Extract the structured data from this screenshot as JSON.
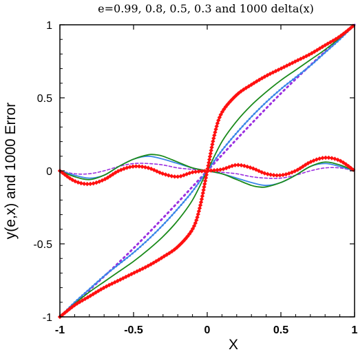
{
  "chart_data": {
    "type": "line",
    "title": "e=0.99, 0.8, 0.5, 0.3 and 1000 delta(x)",
    "xlabel": "X",
    "ylabel": "y(e,x) and 1000 Error",
    "xlim": [
      -1,
      1
    ],
    "ylim": [
      -1,
      1
    ],
    "xticks": [
      -1,
      -0.5,
      0,
      0.5,
      1
    ],
    "yticks": [
      -1,
      -0.5,
      0,
      0.5,
      1
    ],
    "xtick_labels": [
      "-1",
      "-0.5",
      "0",
      "0.5",
      "1"
    ],
    "ytick_labels": [
      "-1",
      "-0.5",
      "0",
      "0.5",
      "1"
    ],
    "grid": false,
    "series": [
      {
        "kind": "y(e,x)",
        "e": 0.99,
        "color": "#ff1010",
        "style": "solid-diamond-markers",
        "x": [
          -1,
          -0.9,
          -0.8,
          -0.7,
          -0.6,
          -0.5,
          -0.4,
          -0.3,
          -0.2,
          -0.1,
          -0.05,
          0,
          0.05,
          0.1,
          0.2,
          0.3,
          0.4,
          0.5,
          0.6,
          0.7,
          0.8,
          0.9,
          1
        ],
        "y": [
          -1,
          -0.92,
          -0.86,
          -0.8,
          -0.75,
          -0.7,
          -0.65,
          -0.59,
          -0.52,
          -0.4,
          -0.25,
          0,
          0.25,
          0.4,
          0.52,
          0.59,
          0.65,
          0.7,
          0.75,
          0.8,
          0.86,
          0.92,
          1
        ]
      },
      {
        "kind": "y(e,x)",
        "e": 0.8,
        "color": "#1a8a1a",
        "style": "solid",
        "x": [
          -1,
          -0.9,
          -0.8,
          -0.7,
          -0.6,
          -0.5,
          -0.4,
          -0.3,
          -0.2,
          -0.1,
          0,
          0.1,
          0.2,
          0.3,
          0.4,
          0.5,
          0.6,
          0.7,
          0.8,
          0.9,
          1
        ],
        "y": [
          -1,
          -0.91,
          -0.83,
          -0.76,
          -0.69,
          -0.62,
          -0.54,
          -0.45,
          -0.34,
          -0.2,
          0,
          0.2,
          0.34,
          0.45,
          0.54,
          0.62,
          0.69,
          0.76,
          0.83,
          0.91,
          1
        ]
      },
      {
        "kind": "y(e,x)",
        "e": 0.5,
        "color": "#3a86e8",
        "style": "solid-small-markers",
        "x": [
          -1,
          -0.9,
          -0.8,
          -0.7,
          -0.6,
          -0.5,
          -0.4,
          -0.3,
          -0.2,
          -0.1,
          0,
          0.1,
          0.2,
          0.3,
          0.4,
          0.5,
          0.6,
          0.7,
          0.8,
          0.9,
          1
        ],
        "y": [
          -1,
          -0.9,
          -0.81,
          -0.72,
          -0.64,
          -0.56,
          -0.47,
          -0.37,
          -0.26,
          -0.14,
          0,
          0.14,
          0.26,
          0.37,
          0.47,
          0.56,
          0.64,
          0.72,
          0.81,
          0.9,
          1
        ]
      },
      {
        "kind": "y(e,x)",
        "e": 0.3,
        "color": "#9b30e0",
        "style": "dashed-dots",
        "x": [
          -1,
          -0.75,
          -0.5,
          -0.25,
          0,
          0.25,
          0.5,
          0.75,
          1
        ],
        "y": [
          -1,
          -0.77,
          -0.53,
          -0.27,
          0,
          0.27,
          0.53,
          0.77,
          1
        ]
      },
      {
        "kind": "1000 Error",
        "e": 0.99,
        "color": "#ff1010",
        "style": "solid-diamond-markers",
        "x": [
          -1,
          -0.9,
          -0.8,
          -0.7,
          -0.6,
          -0.5,
          -0.4,
          -0.3,
          -0.2,
          -0.1,
          0,
          0.1,
          0.2,
          0.3,
          0.4,
          0.5,
          0.6,
          0.7,
          0.8,
          0.9,
          1
        ],
        "y": [
          0,
          -0.07,
          -0.09,
          -0.06,
          0,
          0.03,
          0.02,
          -0.02,
          -0.04,
          -0.01,
          0,
          0.01,
          0.04,
          0.02,
          -0.02,
          -0.03,
          0,
          0.06,
          0.09,
          0.07,
          0
        ]
      },
      {
        "kind": "1000 Error",
        "e": 0.8,
        "color": "#1a8a1a",
        "style": "solid",
        "x": [
          -1,
          -0.9,
          -0.8,
          -0.7,
          -0.6,
          -0.5,
          -0.4,
          -0.35,
          -0.3,
          -0.2,
          -0.1,
          0,
          0.1,
          0.2,
          0.3,
          0.35,
          0.4,
          0.5,
          0.6,
          0.7,
          0.8,
          0.9,
          1
        ],
        "y": [
          0,
          -0.04,
          -0.06,
          -0.03,
          0.03,
          0.08,
          0.11,
          0.11,
          0.1,
          0.06,
          0.02,
          0,
          -0.02,
          -0.06,
          -0.1,
          -0.11,
          -0.11,
          -0.08,
          -0.03,
          0.03,
          0.06,
          0.04,
          0
        ]
      },
      {
        "kind": "1000 Error",
        "e": 0.5,
        "color": "#3a86e8",
        "style": "solid",
        "x": [
          -1,
          -0.9,
          -0.8,
          -0.7,
          -0.6,
          -0.5,
          -0.4,
          -0.3,
          -0.2,
          -0.1,
          0,
          0.1,
          0.2,
          0.3,
          0.4,
          0.5,
          0.6,
          0.7,
          0.8,
          0.9,
          1
        ],
        "y": [
          0,
          -0.03,
          -0.05,
          -0.03,
          0.03,
          0.08,
          0.1,
          0.08,
          0.05,
          0.02,
          0,
          -0.02,
          -0.05,
          -0.08,
          -0.1,
          -0.08,
          -0.03,
          0.03,
          0.05,
          0.03,
          0
        ]
      },
      {
        "kind": "1000 Error",
        "e": 0.3,
        "color": "#9b30e0",
        "style": "dashed",
        "x": [
          -1,
          -0.9,
          -0.8,
          -0.7,
          -0.6,
          -0.5,
          -0.4,
          -0.3,
          -0.2,
          -0.1,
          0,
          0.1,
          0.2,
          0.3,
          0.4,
          0.5,
          0.6,
          0.7,
          0.8,
          0.9,
          1
        ],
        "y": [
          0,
          -0.02,
          -0.02,
          0,
          0.03,
          0.05,
          0.05,
          0.04,
          0.02,
          0.01,
          0,
          -0.01,
          -0.02,
          -0.04,
          -0.05,
          -0.05,
          -0.03,
          0,
          0.02,
          0.02,
          0
        ]
      }
    ]
  }
}
